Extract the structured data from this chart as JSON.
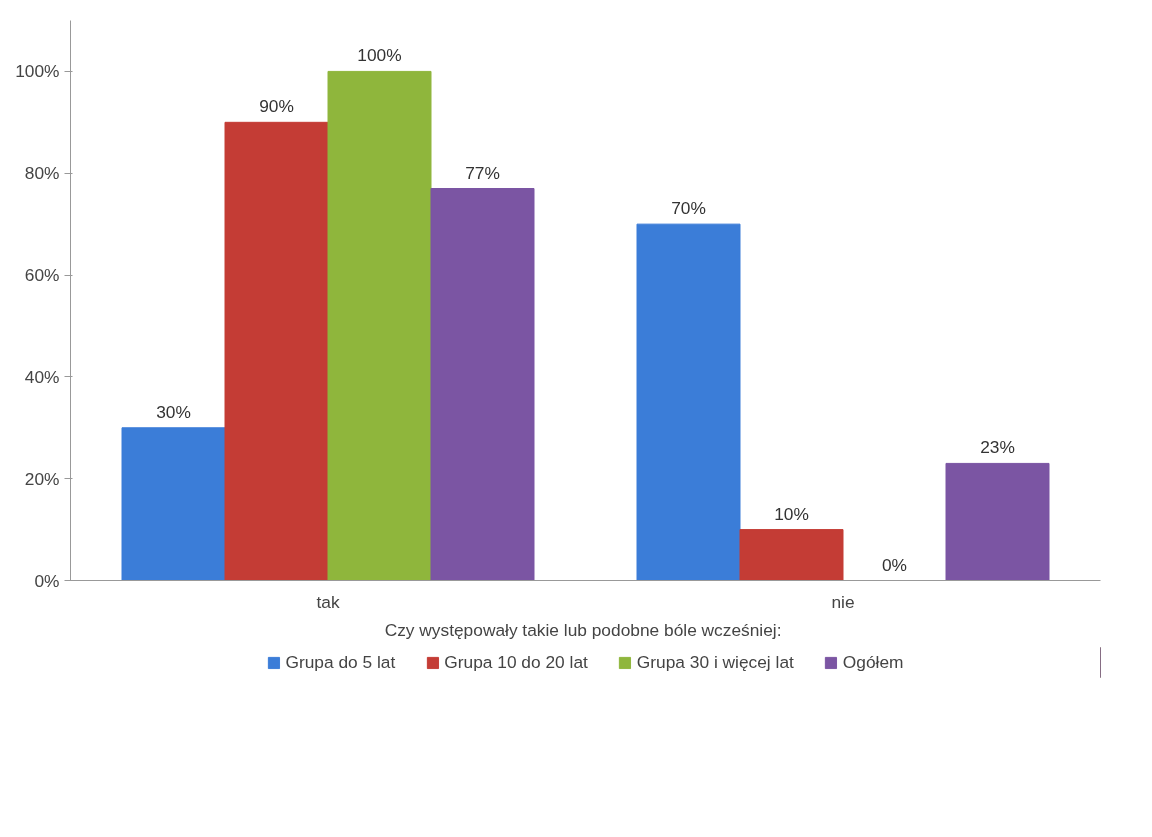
{
  "chart_data": {
    "type": "bar",
    "categories": [
      "tak",
      "nie"
    ],
    "xlabel": "Czy występowały takie lub podobne bóle  wcześniej:",
    "series": [
      {
        "name": "Grupa do 5 lat",
        "color": "#3b7dd8",
        "values": [
          30,
          70
        ],
        "value_labels": [
          "30%",
          "70%"
        ]
      },
      {
        "name": "Grupa 10 do 20 lat",
        "color": "#c43c35",
        "values": [
          90,
          10
        ],
        "value_labels": [
          "90%",
          "10%"
        ]
      },
      {
        "name": "Grupa 30 i więcej lat",
        "color": "#8fb63c",
        "values": [
          100,
          0
        ],
        "value_labels": [
          "100%",
          "0%"
        ]
      },
      {
        "name": "Ogółem",
        "color": "#7b55a3",
        "values": [
          77,
          23
        ],
        "value_labels": [
          "77%",
          "23%"
        ]
      }
    ],
    "ylim": [
      0,
      110
    ],
    "yticks": [
      {
        "value": 0,
        "label": "0%"
      },
      {
        "value": 20,
        "label": "20%"
      },
      {
        "value": 40,
        "label": "40%"
      },
      {
        "value": 60,
        "label": "60%"
      },
      {
        "value": 80,
        "label": "80%"
      },
      {
        "value": 100,
        "label": "100%"
      }
    ],
    "grid": false,
    "legend": "bottom"
  }
}
